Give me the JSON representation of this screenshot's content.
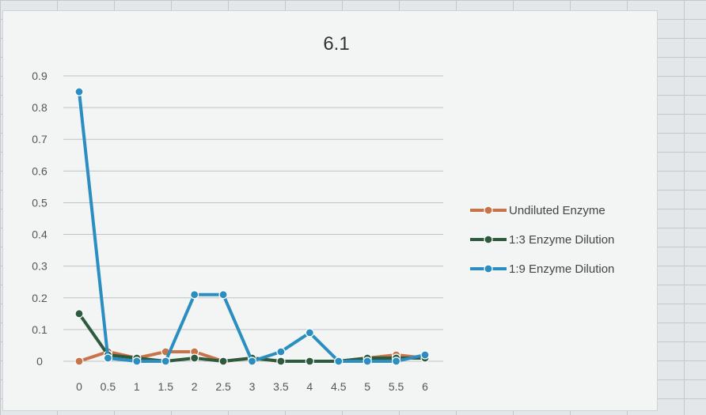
{
  "chart_data": {
    "type": "line",
    "title": "6.1",
    "xlabel": "",
    "ylabel": "",
    "categories": [
      "0",
      "0.5",
      "1",
      "1.5",
      "2",
      "2.5",
      "3",
      "3.5",
      "4",
      "4.5",
      "5",
      "5.5",
      "6"
    ],
    "yticks": [
      "0",
      "0.1",
      "0.2",
      "0.3",
      "0.4",
      "0.5",
      "0.6",
      "0.7",
      "0.8",
      "0.9"
    ],
    "ylim": [
      0,
      0.9
    ],
    "grid": true,
    "legend_position": "right",
    "series": [
      {
        "name": "Undiluted Enzyme",
        "color": "#c8744a",
        "values": [
          0.0,
          0.03,
          0.01,
          0.03,
          0.03,
          0.0,
          0.01,
          0.0,
          0.0,
          0.0,
          0.01,
          0.02,
          0.01
        ]
      },
      {
        "name": "1:3 Enzyme Dilution",
        "color": "#2e5b3e",
        "values": [
          0.15,
          0.02,
          0.01,
          0.0,
          0.01,
          0.0,
          0.01,
          0.0,
          0.0,
          0.0,
          0.01,
          0.01,
          0.01
        ]
      },
      {
        "name": "1:9 Enzyme Dilution",
        "color": "#2a8fc0",
        "values": [
          0.85,
          0.01,
          0.0,
          0.0,
          0.21,
          0.21,
          0.0,
          0.03,
          0.09,
          0.0,
          0.0,
          0.0,
          0.02
        ]
      }
    ]
  }
}
